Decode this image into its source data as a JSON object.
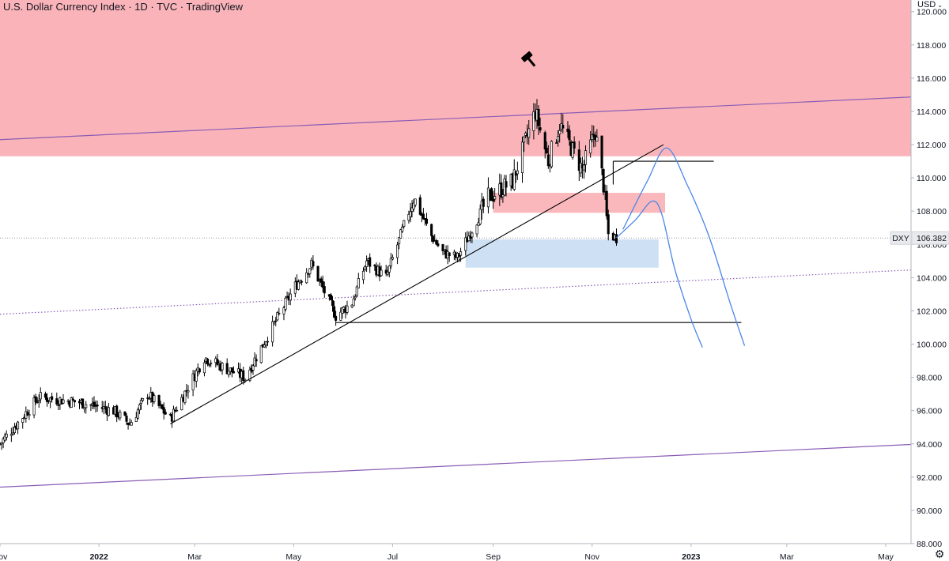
{
  "header": {
    "title": "U.S. Dollar Currency Index · 1D · TVC · TradingView",
    "axis_currency": "USD"
  },
  "colors": {
    "candle_body": "#000000",
    "supply_zone": "#fab0b5",
    "demand_zone": "#c9ddf3",
    "projection": "#4a86e8",
    "channel": "#8a5cb5",
    "last_price_tag_bg": "#e9eaed"
  },
  "icons": {
    "gavel": "gavel-icon",
    "settings": "gear-icon",
    "dropdown": "chevron-down-icon"
  },
  "chart_data": {
    "type": "candlestick",
    "symbol": "DXY",
    "last_price": "106.382",
    "ylim": [
      88.0,
      120.7
    ],
    "y_ticks": [
      "88.000",
      "90.000",
      "92.000",
      "94.000",
      "96.000",
      "98.000",
      "100.000",
      "102.000",
      "104.000",
      "106.000",
      "108.000",
      "110.000",
      "112.000",
      "114.000",
      "116.000",
      "118.000",
      "120.000"
    ],
    "x_ticks": [
      {
        "label": "Nov",
        "date": "2021-11-01"
      },
      {
        "label": "2022",
        "date": "2022-01-01"
      },
      {
        "label": "Mar",
        "date": "2022-03-01"
      },
      {
        "label": "May",
        "date": "2022-05-01"
      },
      {
        "label": "Jul",
        "date": "2022-07-01"
      },
      {
        "label": "Sep",
        "date": "2022-09-01"
      },
      {
        "label": "Nov",
        "date": "2022-11-01"
      },
      {
        "label": "2023",
        "date": "2023-01-01"
      },
      {
        "label": "Mar",
        "date": "2023-03-01"
      },
      {
        "label": "May",
        "date": "2023-05-01"
      }
    ],
    "price_path": [
      {
        "date": "2021-11-01",
        "close": 94.0
      },
      {
        "date": "2021-11-25",
        "close": 96.8
      },
      {
        "date": "2021-12-20",
        "close": 96.5
      },
      {
        "date": "2022-01-10",
        "close": 96.0
      },
      {
        "date": "2022-01-20",
        "close": 95.2
      },
      {
        "date": "2022-01-31",
        "close": 97.0
      },
      {
        "date": "2022-02-14",
        "close": 95.5
      },
      {
        "date": "2022-03-07",
        "close": 99.2
      },
      {
        "date": "2022-03-21",
        "close": 98.5
      },
      {
        "date": "2022-04-01",
        "close": 98.0
      },
      {
        "date": "2022-04-15",
        "close": 100.5
      },
      {
        "date": "2022-05-02",
        "close": 103.5
      },
      {
        "date": "2022-05-12",
        "close": 104.8
      },
      {
        "date": "2022-05-27",
        "close": 101.7
      },
      {
        "date": "2022-06-06",
        "close": 102.5
      },
      {
        "date": "2022-06-15",
        "close": 105.0
      },
      {
        "date": "2022-06-27",
        "close": 104.0
      },
      {
        "date": "2022-07-14",
        "close": 108.8
      },
      {
        "date": "2022-07-25",
        "close": 106.5
      },
      {
        "date": "2022-08-01",
        "close": 105.5
      },
      {
        "date": "2022-08-10",
        "close": 105.2
      },
      {
        "date": "2022-08-29",
        "close": 108.8
      },
      {
        "date": "2022-09-13",
        "close": 109.8
      },
      {
        "date": "2022-09-27",
        "close": 114.0
      },
      {
        "date": "2022-10-05",
        "close": 111.0
      },
      {
        "date": "2022-10-12",
        "close": 113.2
      },
      {
        "date": "2022-10-26",
        "close": 110.5
      },
      {
        "date": "2022-11-03",
        "close": 112.8
      },
      {
        "date": "2022-11-08",
        "close": 109.6
      },
      {
        "date": "2022-11-11",
        "close": 106.6
      },
      {
        "date": "2022-11-16",
        "close": 106.4
      }
    ],
    "zones": [
      {
        "name": "supply",
        "from": "2021-11-01",
        "to": "2023-06-15",
        "low": 111.3,
        "high": 120.7
      },
      {
        "name": "supply-small",
        "from": "2022-09-01",
        "to": "2022-12-16",
        "low": 107.9,
        "high": 109.1
      },
      {
        "name": "demand",
        "from": "2022-08-15",
        "to": "2022-12-12",
        "low": 104.6,
        "high": 106.3
      }
    ],
    "trendlines": [
      {
        "from": {
          "date": "2022-02-14",
          "value": 95.2
        },
        "to": {
          "date": "2022-12-15",
          "value": 112.0
        }
      },
      {
        "from": {
          "date": "2022-11-14",
          "value": 111.0
        },
        "to": {
          "date": "2023-01-15",
          "value": 111.0
        }
      },
      {
        "from": {
          "date": "2022-11-14",
          "value": 111.0
        },
        "to": {
          "date": "2022-11-14",
          "value": 109.6
        }
      },
      {
        "from": {
          "date": "2022-05-27",
          "value": 101.3
        },
        "to": {
          "date": "2023-02-01",
          "value": 101.3
        }
      }
    ],
    "channel_lines": [
      {
        "style": "solid",
        "from": {
          "date": "2021-11-01",
          "value": 112.3
        },
        "to": {
          "date": "2023-06-15",
          "value": 115.0
        }
      },
      {
        "style": "dotted",
        "from": {
          "date": "2021-11-01",
          "value": 101.8
        },
        "to": {
          "date": "2023-06-15",
          "value": 104.6
        }
      },
      {
        "style": "solid",
        "from": {
          "date": "2021-11-01",
          "value": 91.4
        },
        "to": {
          "date": "2023-06-15",
          "value": 94.1
        }
      }
    ],
    "projections": [
      [
        {
          "date": "2022-11-16",
          "value": 106.4
        },
        {
          "date": "2022-11-28",
          "value": 107.5
        },
        {
          "date": "2022-12-08",
          "value": 108.6
        },
        {
          "date": "2022-12-14",
          "value": 107.8
        },
        {
          "date": "2022-12-22",
          "value": 104.5
        },
        {
          "date": "2023-01-01",
          "value": 101.5
        },
        {
          "date": "2023-01-08",
          "value": 99.8
        }
      ],
      [
        {
          "date": "2022-11-20",
          "value": 106.9
        },
        {
          "date": "2022-12-05",
          "value": 109.8
        },
        {
          "date": "2022-12-17",
          "value": 111.8
        },
        {
          "date": "2022-12-30",
          "value": 109.5
        },
        {
          "date": "2023-01-12",
          "value": 106.5
        },
        {
          "date": "2023-01-25",
          "value": 102.5
        },
        {
          "date": "2023-02-03",
          "value": 99.9
        }
      ]
    ],
    "annotation_icon": {
      "icon": "gavel-icon",
      "date": "2022-09-23",
      "value": 117.3
    }
  }
}
